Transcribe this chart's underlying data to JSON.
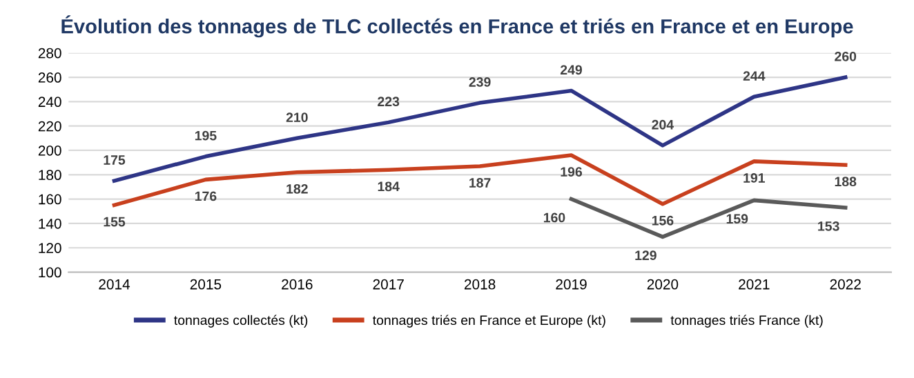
{
  "chart_data": {
    "type": "line",
    "title": "Évolution des tonnages de TLC collectés en France et triés en France et en Europe",
    "categories": [
      "2014",
      "2015",
      "2016",
      "2017",
      "2018",
      "2019",
      "2020",
      "2021",
      "2022"
    ],
    "series": [
      {
        "name": "tonnages collectés (kt)",
        "color": "#2e3586",
        "values": [
          175,
          195,
          210,
          223,
          239,
          249,
          204,
          244,
          260
        ]
      },
      {
        "name": "tonnages triés en France et Europe (kt)",
        "color": "#c8401e",
        "values": [
          155,
          176,
          182,
          184,
          187,
          196,
          156,
          191,
          188
        ]
      },
      {
        "name": "tonnages triés France (kt)",
        "color": "#5a5a5a",
        "values": [
          null,
          null,
          null,
          null,
          null,
          160,
          129,
          159,
          153
        ]
      }
    ],
    "ylim": [
      100,
      280
    ],
    "yticks": [
      100,
      120,
      140,
      160,
      180,
      200,
      220,
      240,
      260,
      280
    ],
    "grid": "y",
    "legend": "bottom",
    "data_labels": true,
    "marker": "none",
    "line_style": "solid"
  }
}
